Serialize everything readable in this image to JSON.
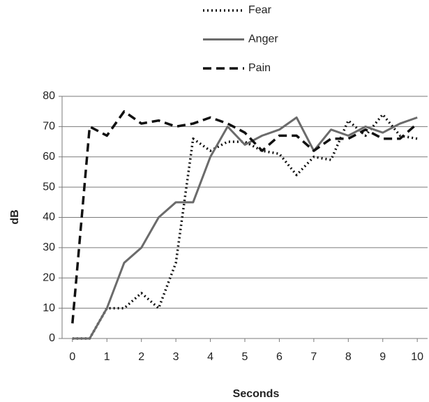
{
  "chart_data": {
    "type": "line",
    "x_label": "Seconds",
    "y_label": "dB",
    "x": [
      0,
      0.5,
      1,
      1.5,
      2,
      2.5,
      3,
      3.5,
      4,
      4.5,
      5,
      5.5,
      6,
      6.5,
      7,
      7.5,
      8,
      8.5,
      9,
      9.5,
      10
    ],
    "series": [
      {
        "name": "Fear",
        "color": "#111111",
        "dash": "dotted",
        "values": [
          0,
          0,
          10,
          10,
          15,
          10,
          25,
          66,
          62,
          65,
          65,
          62,
          61,
          54,
          60,
          59,
          72,
          67,
          74,
          67,
          66
        ]
      },
      {
        "name": "Anger",
        "color": "#6b6b6b",
        "dash": "solid",
        "values": [
          0,
          0,
          10,
          25,
          30,
          40,
          45,
          45,
          60,
          70,
          64,
          67,
          69,
          73,
          62,
          69,
          67,
          70,
          68,
          71,
          73
        ]
      },
      {
        "name": "Pain",
        "color": "#111111",
        "dash": "dashed",
        "values": [
          5,
          70,
          67,
          75,
          71,
          72,
          70,
          71,
          73,
          71,
          68,
          62,
          67,
          67,
          62,
          66,
          66,
          69,
          66,
          66,
          71
        ]
      }
    ],
    "xlim": [
      -0.3,
      10.3
    ],
    "xticks": [
      0,
      1,
      2,
      3,
      4,
      5,
      6,
      7,
      8,
      9,
      10
    ],
    "ylim": [
      0,
      80
    ],
    "yticks": [
      0,
      10,
      20,
      30,
      40,
      50,
      60,
      70,
      80
    ],
    "grid": true,
    "legend": "top"
  }
}
